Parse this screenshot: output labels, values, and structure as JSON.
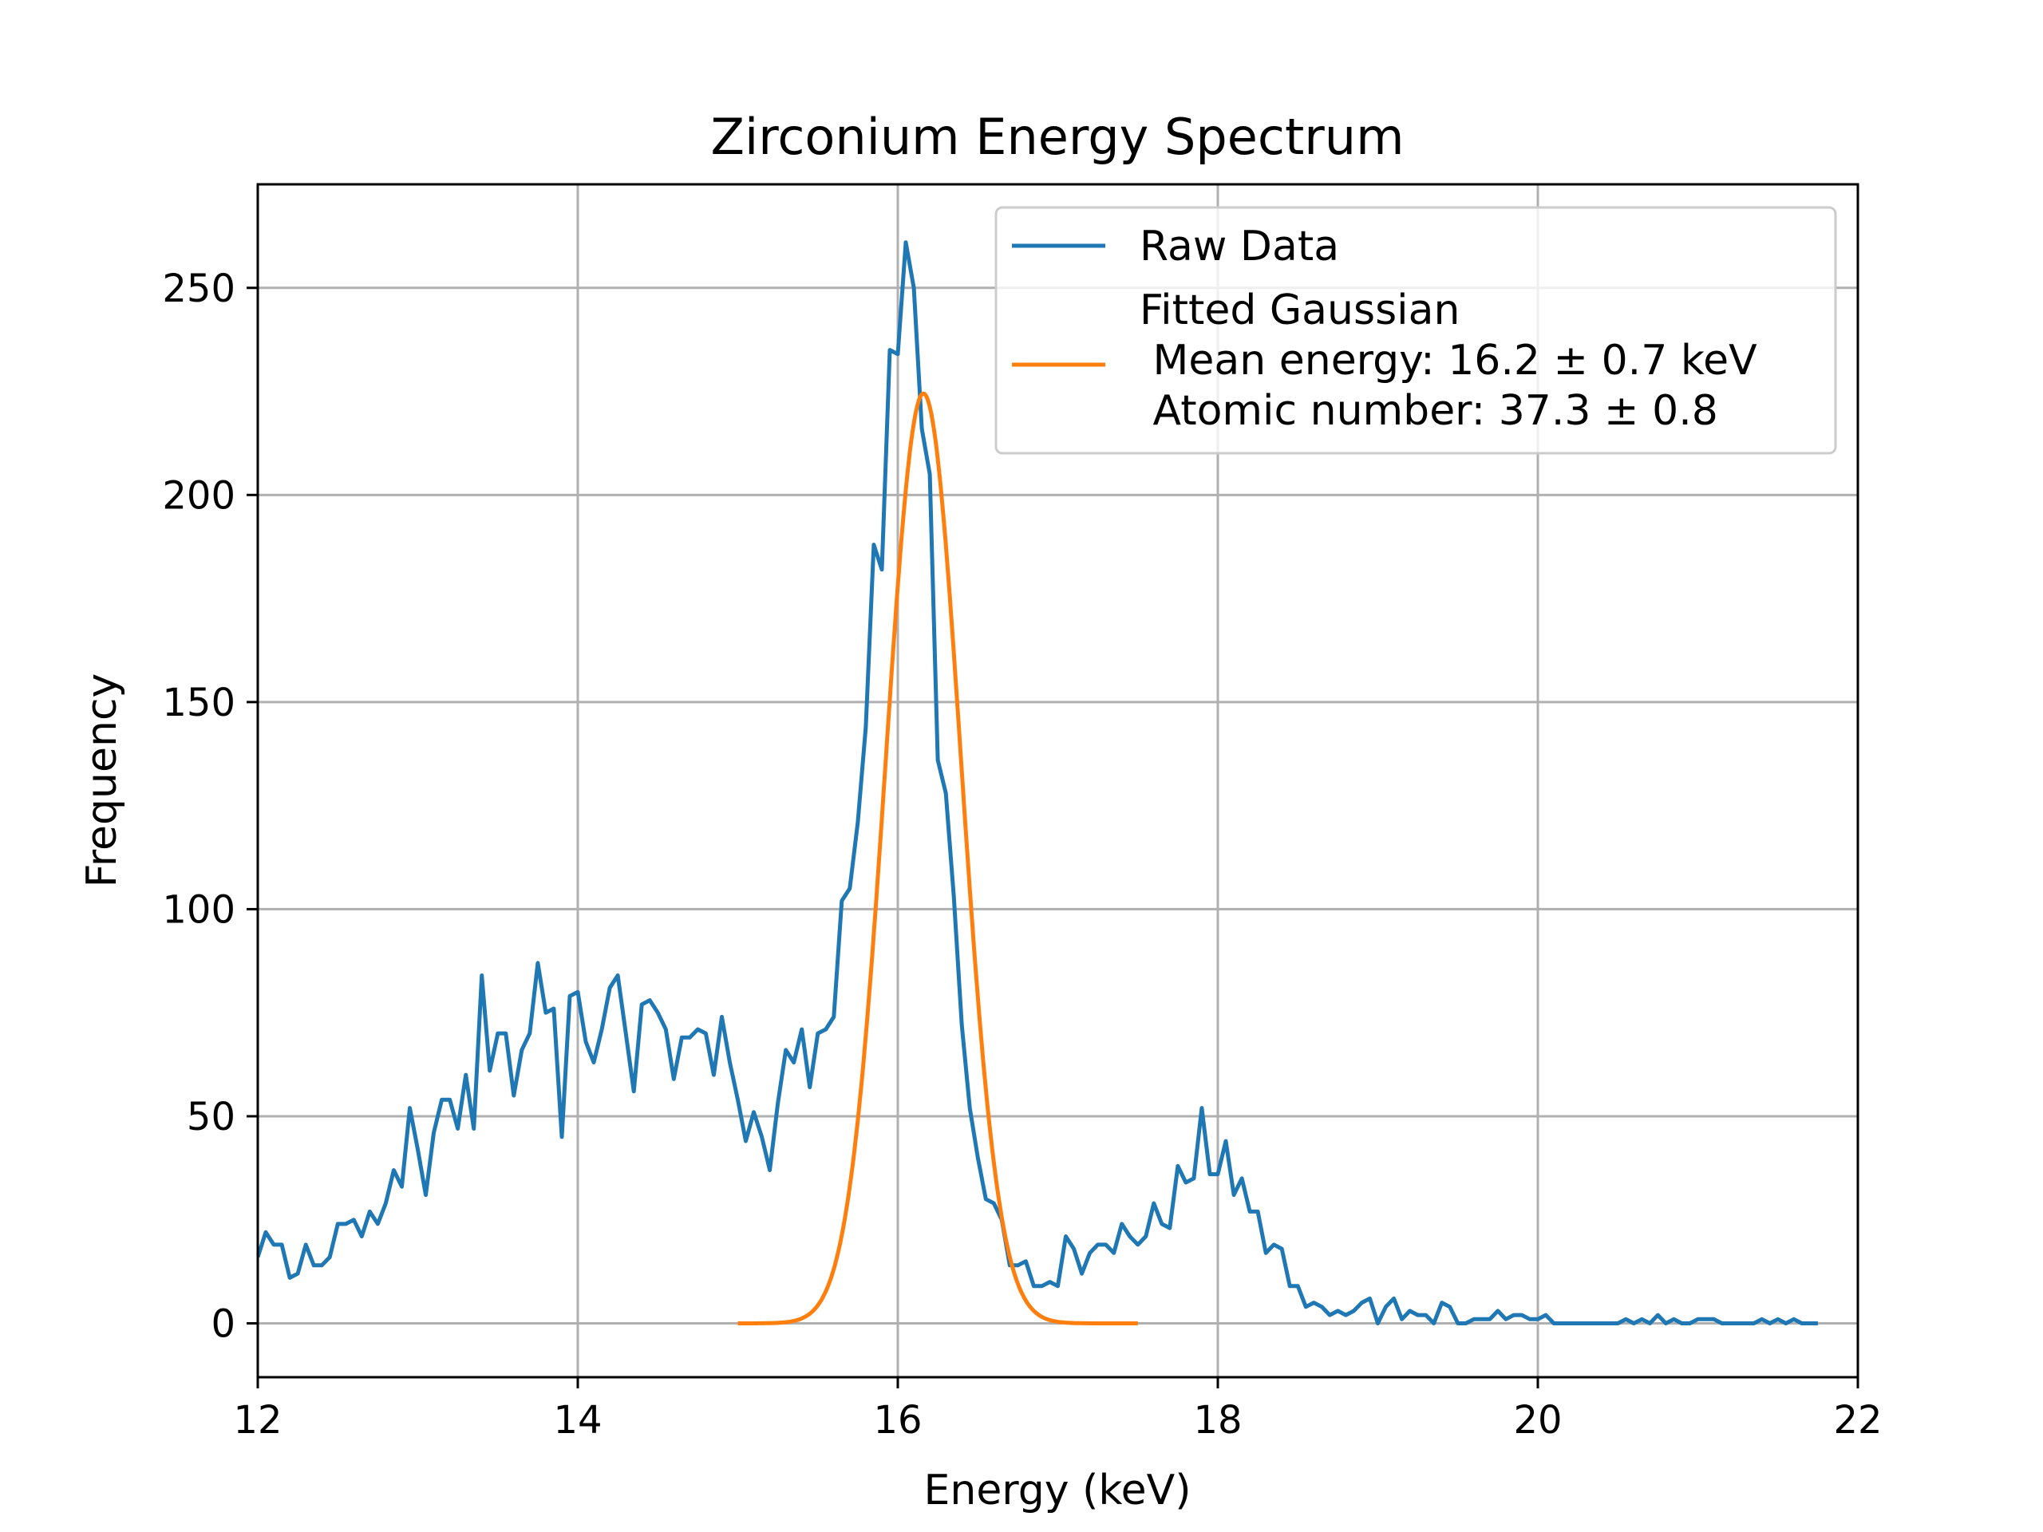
{
  "chart_data": {
    "type": "line",
    "title": "Zirconium Energy Spectrum",
    "xlabel": "Energy (keV)",
    "ylabel": "Frequency",
    "xlim": [
      12,
      22
    ],
    "ylim": [
      -13,
      275
    ],
    "xticks": [
      12,
      14,
      16,
      18,
      20,
      22
    ],
    "yticks": [
      0,
      50,
      100,
      150,
      200,
      250
    ],
    "xtick_labels": [
      "12",
      "14",
      "16",
      "18",
      "20",
      "22"
    ],
    "ytick_labels": [
      "0",
      "50",
      "100",
      "150",
      "200",
      "250"
    ],
    "grid": true,
    "legend_position": "top-right",
    "series": [
      {
        "name": "Raw Data",
        "color": "#1f77b4",
        "kind": "step-line",
        "x_start": 12.0,
        "x_step": 0.05,
        "values": [
          16,
          22,
          19,
          19,
          11,
          12,
          19,
          14,
          14,
          16,
          24,
          24,
          25,
          21,
          27,
          24,
          29,
          37,
          33,
          52,
          42,
          31,
          46,
          54,
          54,
          47,
          60,
          47,
          84,
          61,
          70,
          70,
          55,
          66,
          70,
          87,
          75,
          76,
          45,
          79,
          80,
          68,
          63,
          71,
          81,
          84,
          70,
          56,
          77,
          78,
          75,
          71,
          59,
          69,
          69,
          71,
          70,
          60,
          74,
          63,
          54,
          44,
          51,
          45,
          37,
          53,
          66,
          63,
          71,
          57,
          70,
          71,
          74,
          102,
          105,
          121,
          144,
          188,
          182,
          235,
          234,
          261,
          250,
          216,
          205,
          136,
          128,
          103,
          72,
          52,
          40,
          30,
          29,
          25,
          14,
          14,
          15,
          9,
          9,
          10,
          9,
          21,
          18,
          12,
          17,
          19,
          19,
          17,
          24,
          21,
          19,
          21,
          29,
          24,
          23,
          38,
          34,
          35,
          52,
          36,
          36,
          44,
          31,
          35,
          27,
          27,
          17,
          19,
          18,
          9,
          9,
          4,
          5,
          4,
          2,
          3,
          2,
          3,
          5,
          6,
          0,
          4,
          6,
          1,
          3,
          2,
          2,
          0,
          5,
          4,
          0,
          0,
          1,
          1,
          1,
          3,
          1,
          2,
          2,
          1,
          1,
          2,
          0,
          0,
          0,
          0,
          0,
          0,
          0,
          0,
          0,
          1,
          0,
          1,
          0,
          2,
          0,
          1,
          0,
          0,
          1,
          1,
          1,
          0,
          0,
          0,
          0,
          0,
          1,
          0,
          1,
          0,
          1,
          0,
          0,
          0
        ]
      },
      {
        "name": "Fitted Gaussian\n Mean energy: 16.2 ± 0.7 keV\n Atomic number: 37.3 ± 0.8",
        "color": "#ff7f0e",
        "kind": "gaussian",
        "amplitude": 224.5,
        "mean": 16.16,
        "sigma": 0.235,
        "x_range": [
          15.0,
          17.5
        ]
      }
    ]
  }
}
